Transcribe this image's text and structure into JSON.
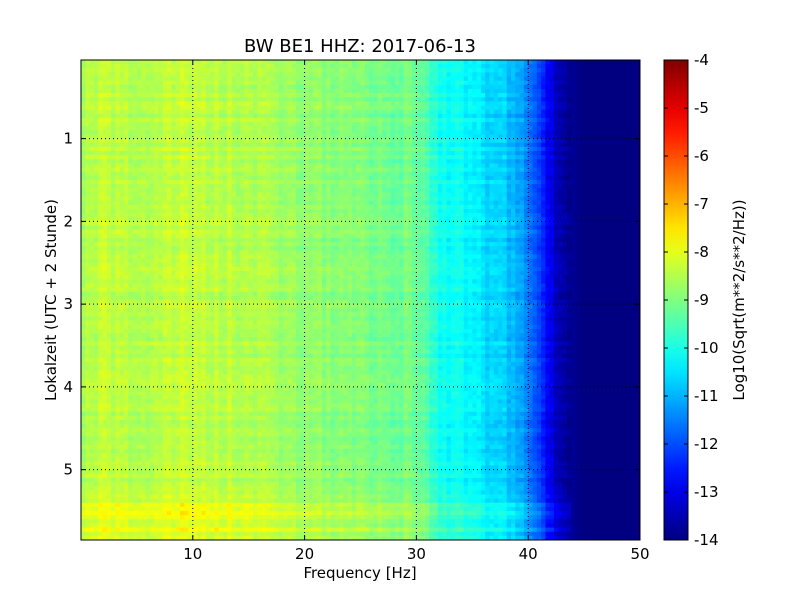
{
  "chart_data": {
    "type": "heatmap",
    "title": "BW BE1 HHZ: 2017-06-13",
    "xlabel": "Frequency [Hz]",
    "ylabel": "Lokalzeit (UTC + 2 Stunde)",
    "xlim": [
      0,
      50
    ],
    "ylim": [
      5.85,
      0.05
    ],
    "x_ticks": [
      "10",
      "20",
      "30",
      "40",
      "50"
    ],
    "x_tick_values": [
      10,
      20,
      30,
      40,
      50
    ],
    "y_ticks": [
      "1",
      "2",
      "3",
      "4",
      "5"
    ],
    "y_tick_values": [
      1,
      2,
      3,
      4,
      5
    ],
    "grid": true,
    "colormap": "jet",
    "colorbar": {
      "label": "Log10(Sqrt(m**2/s**2/Hz))",
      "range": [
        -14,
        -4
      ],
      "ticks": [
        "-4",
        "-5",
        "-6",
        "-7",
        "-8",
        "-9",
        "-10",
        "-11",
        "-12",
        "-13",
        "-14"
      ],
      "tick_values": [
        -4,
        -5,
        -6,
        -7,
        -8,
        -9,
        -10,
        -11,
        -12,
        -13,
        -14
      ]
    },
    "power_profile": {
      "frequency_hz": [
        0,
        1,
        2,
        5,
        10,
        15,
        20,
        25,
        28,
        30,
        31,
        32,
        35,
        38,
        40,
        41,
        42,
        43,
        45,
        50
      ],
      "log10_value": [
        -8.6,
        -8.5,
        -8.4,
        -8.5,
        -8.3,
        -8.5,
        -8.8,
        -9.0,
        -9.1,
        -9.2,
        -9.5,
        -10.0,
        -10.4,
        -10.8,
        -11.4,
        -12.2,
        -13.0,
        -13.6,
        -14.0,
        -14.0
      ]
    }
  }
}
